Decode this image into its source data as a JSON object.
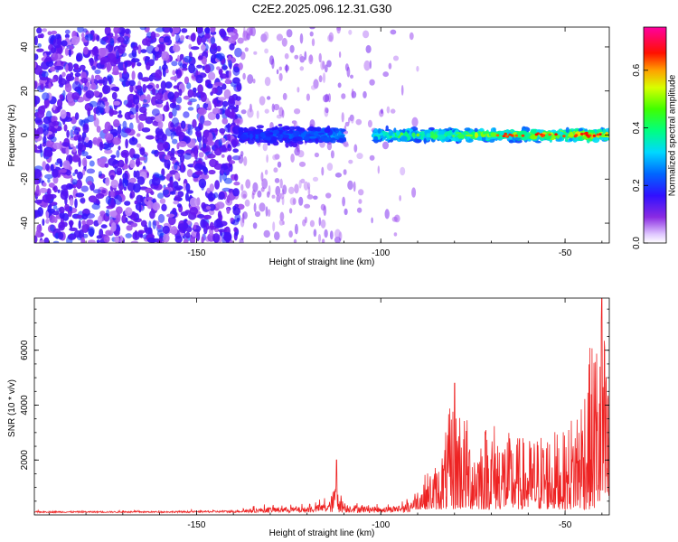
{
  "figure": {
    "title": "C2E2.2025.096.12.31.G30"
  },
  "chart_data": [
    {
      "type": "heatmap",
      "xlabel": "Height of straight line (km)",
      "ylabel": "Frequency (Hz)",
      "xlim": [
        -194,
        -38
      ],
      "ylim": [
        -49,
        49
      ],
      "xticks": [
        -150,
        -100,
        -50
      ],
      "yticks": [
        -40,
        -20,
        0,
        20,
        40
      ],
      "colorbar": {
        "label": "Normalized spectral amplitude",
        "range": [
          0,
          0.75
        ],
        "ticks": [
          0.0,
          0.2,
          0.4,
          0.6
        ],
        "colormap": "rainbow (violet-blue-cyan-green-yellow-red-magenta)"
      },
      "description_points": [
        {
          "x": -194,
          "x_end": -138,
          "signal": "broadband noise spanning full frequency range"
        },
        {
          "x": -138,
          "x_end": -110,
          "center_hz": 0,
          "amplitude": 0.25
        },
        {
          "x": -102,
          "x_end": -38,
          "center_hz": 0,
          "amplitude_peak": 0.75
        }
      ]
    },
    {
      "type": "line",
      "xlabel": "Height of straight line (km)",
      "ylabel": "SNR (10 * v/v)",
      "xlim": [
        -194,
        -38
      ],
      "ylim": [
        0,
        7900
      ],
      "xticks": [
        -150,
        -100,
        -50
      ],
      "yticks": [
        2000,
        4000,
        6000
      ],
      "color": "#ee2222",
      "series_envelope": [
        {
          "x": -194,
          "y": 150
        },
        {
          "x": -160,
          "y": 150
        },
        {
          "x": -140,
          "y": 200
        },
        {
          "x": -130,
          "y": 400
        },
        {
          "x": -120,
          "y": 400
        },
        {
          "x": -114,
          "y": 700
        },
        {
          "x": -112,
          "y": 2000
        },
        {
          "x": -110,
          "y": 600
        },
        {
          "x": -100,
          "y": 400
        },
        {
          "x": -92,
          "y": 600
        },
        {
          "x": -88,
          "y": 1500
        },
        {
          "x": -84,
          "y": 2000
        },
        {
          "x": -80,
          "y": 4800
        },
        {
          "x": -75,
          "y": 3000
        },
        {
          "x": -70,
          "y": 3600
        },
        {
          "x": -65,
          "y": 3000
        },
        {
          "x": -60,
          "y": 2800
        },
        {
          "x": -55,
          "y": 3200
        },
        {
          "x": -50,
          "y": 3000
        },
        {
          "x": -46,
          "y": 4700
        },
        {
          "x": -42,
          "y": 6800
        },
        {
          "x": -40,
          "y": 7900
        },
        {
          "x": -38,
          "y": 4500
        }
      ]
    }
  ]
}
